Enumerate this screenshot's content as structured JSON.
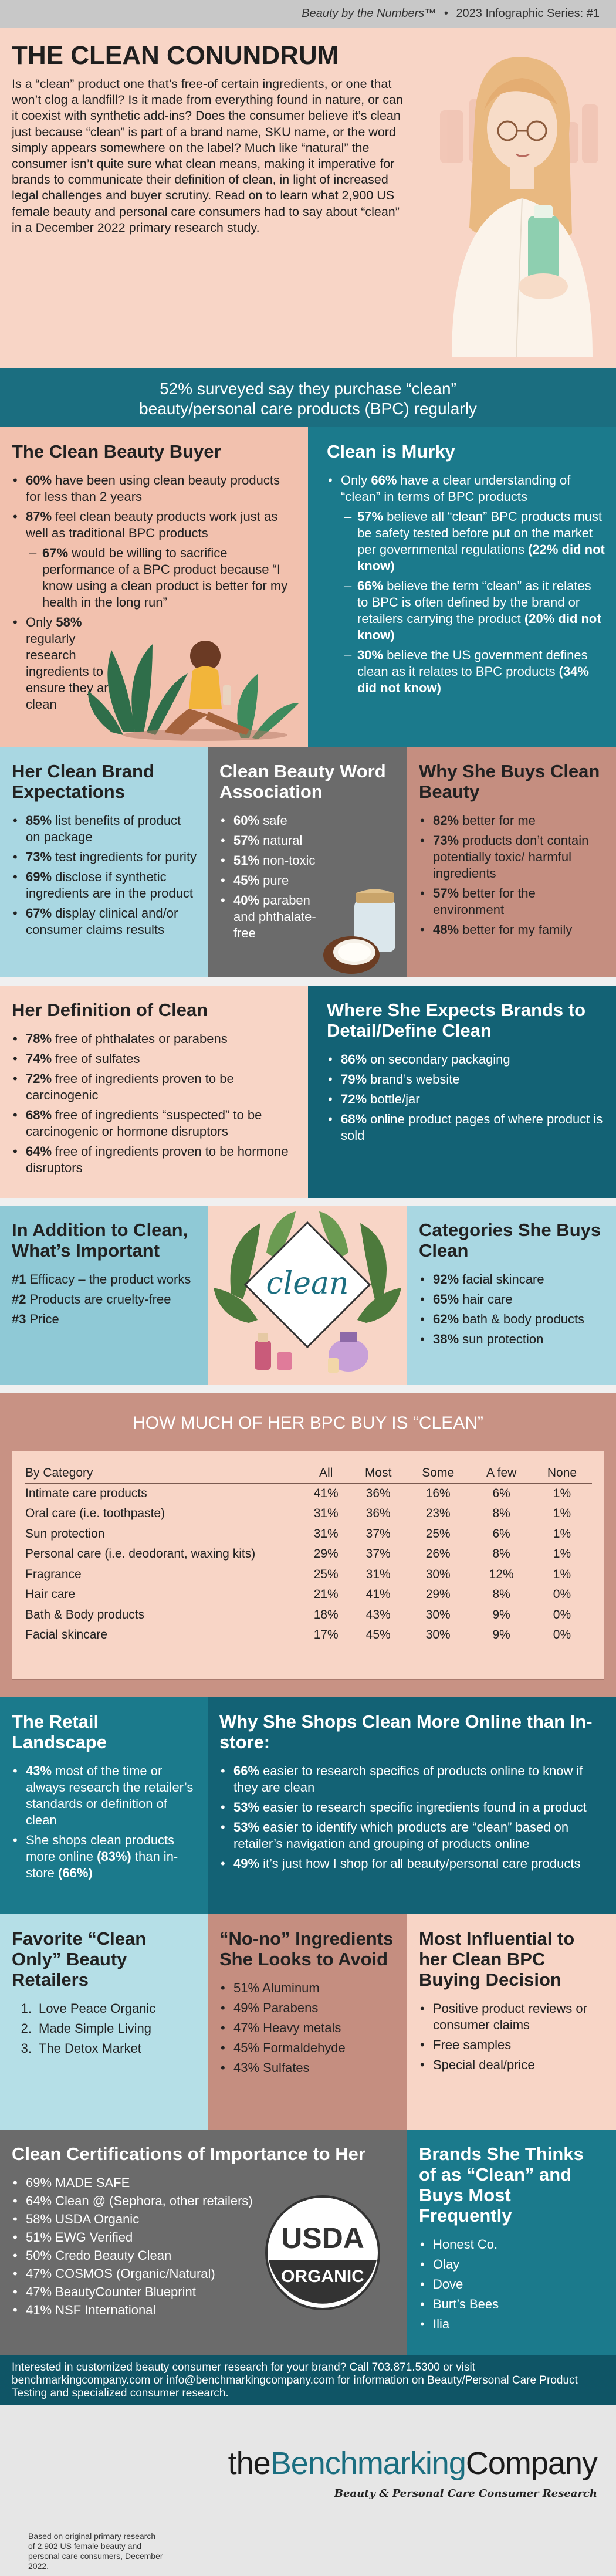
{
  "header": {
    "series_title": "Beauty by the Numbers™",
    "series_sep": "•",
    "series_name": "2023 Infographic Series: #1"
  },
  "intro": {
    "title": "THE CLEAN CONUNDRUM",
    "body": "Is a “clean” product one that’s free-of certain ingredients, or one that won’t clog a landfill? Is it made from everything found in nature, or can it coexist with synthetic add-ins? Does the consumer believe it’s clean just because “clean” is part of a brand name, SKU name, or the word simply appears somewhere on the label? Much like “natural” the consumer isn’t quite sure what clean means, making it imperative for brands to communicate their definition of clean, in light of increased legal challenges and buyer scrutiny. Read on to learn what 2,900 US female beauty and personal care consumers had to say about “clean” in a December 2022 primary research study."
  },
  "banner": {
    "line1": "52% surveyed say they purchase “clean”",
    "line2": "beauty/personal care products (BPC) regularly"
  },
  "buyer": {
    "title": "The Clean Beauty Buyer",
    "items": [
      {
        "b": "60%",
        "t": " have been using clean beauty products for less than 2 years"
      },
      {
        "b": "87%",
        "t": " feel clean beauty products work just as well as traditional BPC products"
      },
      {
        "b": "67%",
        "t": " would be willing to sacrifice performance of a BPC product because “I know using a clean product is better for my health in the long run”"
      },
      {
        "b": "",
        "t": "Only ",
        "b2": "58%",
        "t2": " regularly research ingredients to ensure they are clean"
      }
    ]
  },
  "murky": {
    "title": "Clean is Murky",
    "lead_a": "Only ",
    "lead_b": "66%",
    "lead_c": " have a clear understanding of “clean” in terms of BPC products",
    "items": [
      {
        "b": "57%",
        "t": " believe all “clean” BPC products must be safety tested before put on the market per governmental regulations",
        "p": "(22% did not know)"
      },
      {
        "b": "66%",
        "t": " believe the term “clean” as it relates to BPC is often defined by the brand or retailers carrying the product",
        "p": "(20% did not know)"
      },
      {
        "b": "30%",
        "t": " believe the US government defines clean as it relates to BPC products",
        "p": "(34% did not know)"
      }
    ]
  },
  "expect": {
    "title": "Her Clean Brand Expectations",
    "items": [
      {
        "b": "85%",
        "t": " list benefits of product on package"
      },
      {
        "b": "73%",
        "t": " test ingredients for purity"
      },
      {
        "b": "69%",
        "t": " disclose if synthetic ingredients are in the product"
      },
      {
        "b": "67%",
        "t": " display clinical and/or consumer claims results"
      }
    ]
  },
  "assoc": {
    "title": "Clean Beauty Word Association",
    "items": [
      {
        "b": "60%",
        "t": " safe"
      },
      {
        "b": "57%",
        "t": " natural"
      },
      {
        "b": "51%",
        "t": " non-toxic"
      },
      {
        "b": "45%",
        "t": " pure"
      },
      {
        "b": "40%",
        "t": " paraben and phthalate-free"
      }
    ]
  },
  "why": {
    "title": "Why She Buys Clean Beauty",
    "items": [
      {
        "b": "82%",
        "t": " better for me"
      },
      {
        "b": "73%",
        "t": " products don’t contain potentially toxic/ harmful ingredients"
      },
      {
        "b": "57%",
        "t": " better for the environment"
      },
      {
        "b": "48%",
        "t": " better for my family"
      }
    ]
  },
  "define": {
    "title": "Her Definition of Clean",
    "items": [
      {
        "b": "78%",
        "t": " free of phthalates or parabens"
      },
      {
        "b": "74%",
        "t": " free of sulfates"
      },
      {
        "b": "72%",
        "t": " free of ingredients proven to be carcinogenic"
      },
      {
        "b": "68%",
        "t": " free of ingredients “suspected” to be carcinogenic or hormone disruptors"
      },
      {
        "b": "64%",
        "t": " free of ingredients proven to be hormone disruptors"
      }
    ]
  },
  "detail": {
    "title": "Where She Expects Brands to Detail/Define Clean",
    "items": [
      {
        "b": "86%",
        "t": " on secondary packaging"
      },
      {
        "b": "79%",
        "t": " brand’s website"
      },
      {
        "b": "72%",
        "t": " bottle/jar"
      },
      {
        "b": "68%",
        "t": " online product pages of where product is sold"
      }
    ]
  },
  "important": {
    "title": "In Addition to Clean, What’s Important",
    "items": [
      {
        "b": "#1",
        "t": " Efficacy – the product works"
      },
      {
        "b": "#2",
        "t": " Products are cruelty-free"
      },
      {
        "b": "#3",
        "t": " Price"
      }
    ]
  },
  "clean_word": "clean",
  "categories": {
    "title": "Categories She Buys Clean",
    "items": [
      {
        "b": "92%",
        "t": " facial skincare"
      },
      {
        "b": "65%",
        "t": " hair care"
      },
      {
        "b": "62%",
        "t": " bath & body products"
      },
      {
        "b": "38%",
        "t": " sun protection"
      }
    ]
  },
  "howmuch": {
    "title": "HOW MUCH OF HER BPC BUY IS “CLEAN”",
    "columns": [
      "By Category",
      "All",
      "Most",
      "Some",
      "A few",
      "None"
    ],
    "rows": [
      [
        "Intimate care products",
        "41%",
        "36%",
        "16%",
        "6%",
        "1%"
      ],
      [
        "Oral care (i.e. toothpaste)",
        "31%",
        "36%",
        "23%",
        "8%",
        "1%"
      ],
      [
        "Sun protection",
        "31%",
        "37%",
        "25%",
        "6%",
        "1%"
      ],
      [
        "Personal care (i.e. deodorant, waxing kits)",
        "29%",
        "37%",
        "26%",
        "8%",
        "1%"
      ],
      [
        "Fragrance",
        "25%",
        "31%",
        "30%",
        "12%",
        "1%"
      ],
      [
        "Hair care",
        "21%",
        "41%",
        "29%",
        "8%",
        "0%"
      ],
      [
        "Bath & Body products",
        "18%",
        "43%",
        "30%",
        "9%",
        "0%"
      ],
      [
        "Facial skincare",
        "17%",
        "45%",
        "30%",
        "9%",
        "0%"
      ]
    ]
  },
  "retail": {
    "title": "The Retail Landscape",
    "items": [
      {
        "b": "43%",
        "t": " most of the time or always research the retailer’s standards or definition of clean"
      },
      {
        "b": "",
        "t": "She shops clean products more online ",
        "b2": "(83%)",
        "t2": " than in-store ",
        "b3": "(66%)"
      }
    ]
  },
  "online": {
    "title": "Why She Shops Clean More Online than In-store:",
    "items": [
      {
        "b": "66%",
        "t": " easier to research specifics of products online to know if they are clean"
      },
      {
        "b": "53%",
        "t": " easier to research specific ingredients found in a product"
      },
      {
        "b": "53%",
        "t": " easier to identify which products are “clean” based on retailer’s navigation and grouping of products online"
      },
      {
        "b": "49%",
        "t": " it’s just how I shop for all beauty/personal care products"
      }
    ]
  },
  "retailers": {
    "title": "Favorite “Clean Only” Beauty Retailers",
    "items": [
      {
        "n": "1.",
        "t": "Love Peace Organic"
      },
      {
        "n": "2.",
        "t": "Made Simple Living"
      },
      {
        "n": "3.",
        "t": "The Detox Market"
      }
    ]
  },
  "nono": {
    "title": "“No-no” Ingredients She Looks to Avoid",
    "items": [
      "51% Aluminum",
      "49% Parabens",
      "47% Heavy metals",
      "45% Formaldehyde",
      "43% Sulfates"
    ]
  },
  "influence": {
    "title": "Most Influential to her Clean BPC Buying Decision",
    "items": [
      "Positive product reviews or consumer claims",
      "Free samples",
      "Special deal/price"
    ]
  },
  "certs": {
    "title": "Clean Certifications of Importance to Her",
    "items": [
      "69% MADE SAFE",
      "64% Clean @ (Sephora, other retailers)",
      "58% USDA Organic",
      "51% EWG Verified",
      "50% Credo Beauty Clean",
      "47% COSMOS (Organic/Natural)",
      "47% BeautyCounter Blueprint",
      "41% NSF International"
    ],
    "seal_top": "USDA",
    "seal_bottom": "ORGANIC"
  },
  "brands": {
    "title": "Brands She Thinks of as “Clean” and Buys Most Frequently",
    "items": [
      "Honest Co.",
      "Olay",
      "Dove",
      "Burt’s Bees",
      "Ilia"
    ]
  },
  "cta": "Interested in customized beauty consumer research for your brand? Call 703.871.5300 or visit benchmarkingcompany.com or info@benchmarkingcompany.com for information on Beauty/Personal Care Product Testing and specialized consumer research.",
  "footer": {
    "logo_a": "the",
    "logo_b": "Benchmarking",
    "logo_c": "Company",
    "tagline": "Beauty & Personal Care Consumer Research",
    "note": "Based on original primary research of 2,902 US female beauty and personal care consumers, December 2022."
  },
  "colors": {
    "teal": "#1b7a8c",
    "cream": "#f8d5c6",
    "tan": "#c58e80",
    "aqua": "#8fc9d6",
    "gray": "#6b6b6b"
  }
}
